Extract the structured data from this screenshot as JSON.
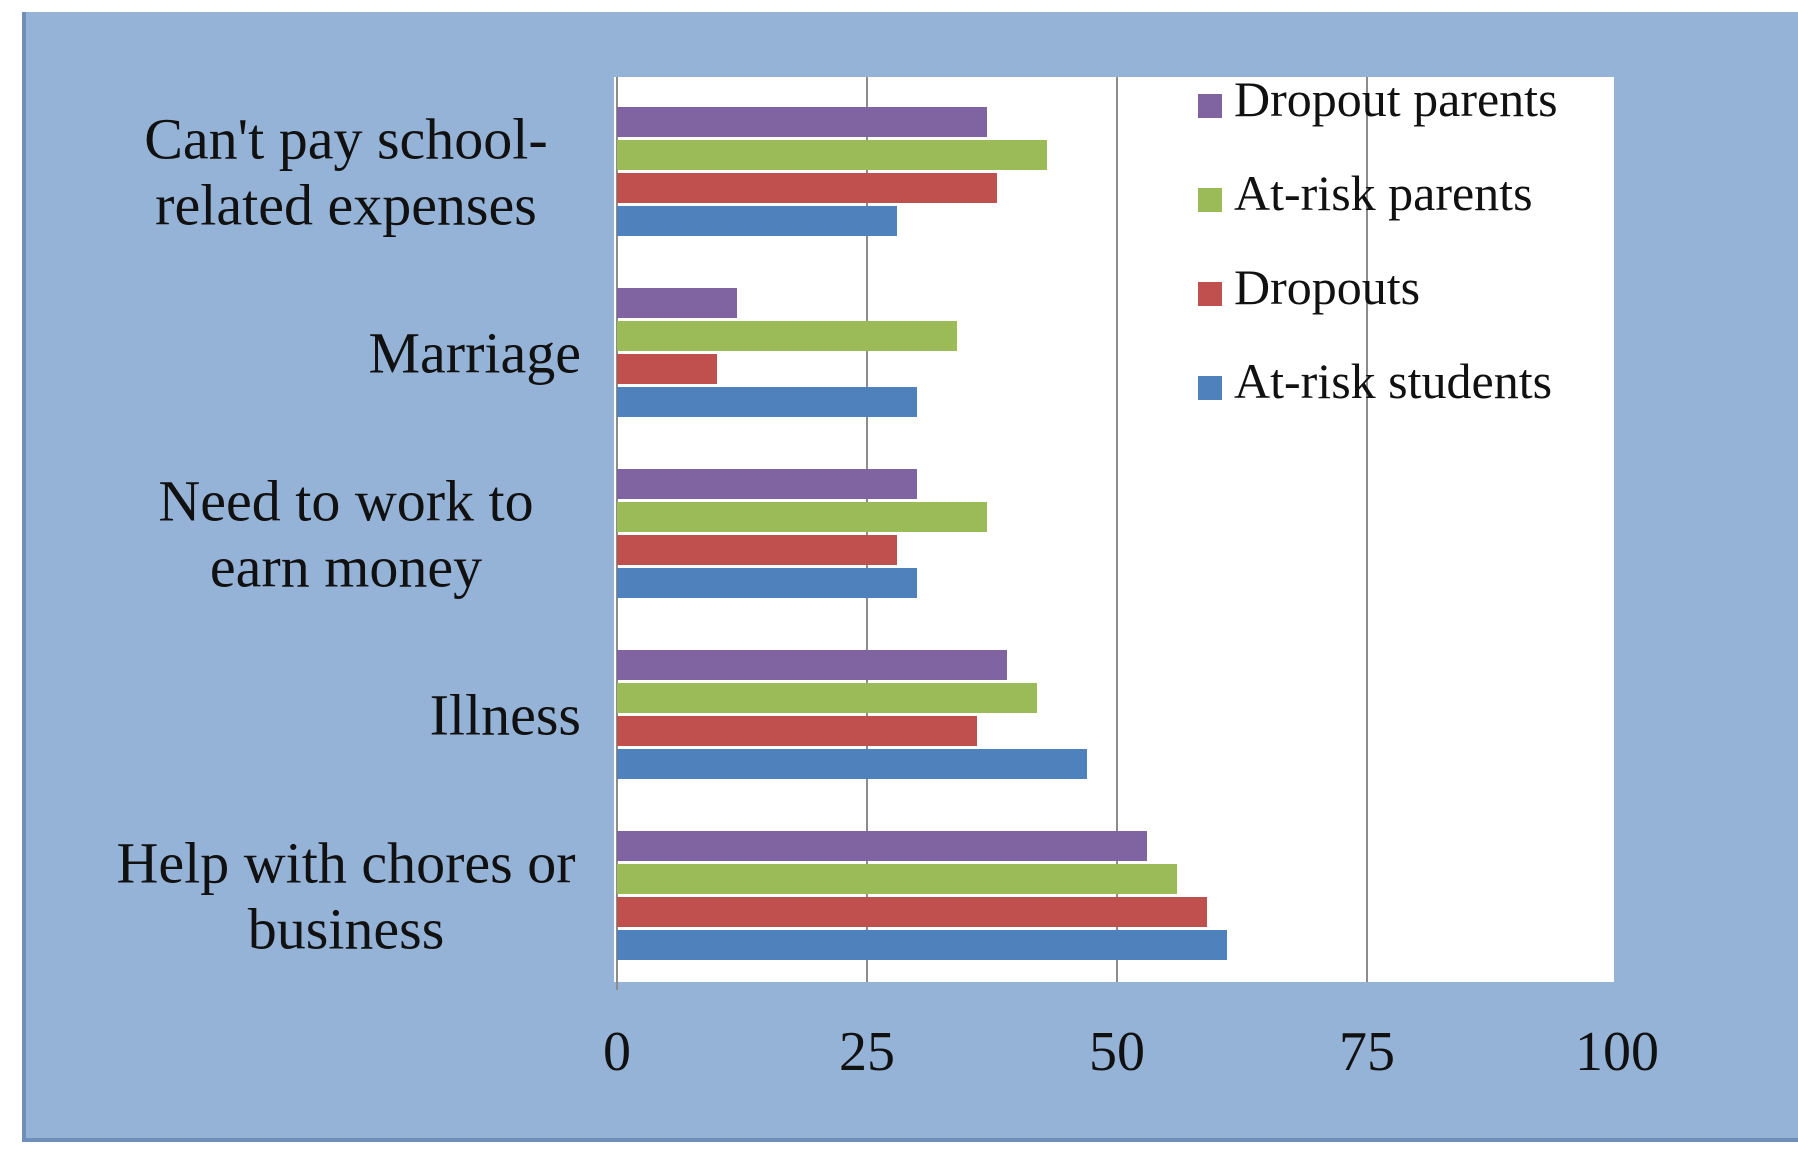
{
  "chart_data": {
    "type": "bar",
    "orientation": "horizontal",
    "title": "",
    "xlabel": "",
    "ylabel": "",
    "xlim": [
      0,
      100
    ],
    "x_ticks": [
      "0",
      "25",
      "50",
      "75",
      "100"
    ],
    "grid": "vertical",
    "legend_position": "top-right",
    "categories": [
      [
        "Can't pay school-",
        "related expenses"
      ],
      [
        "Marriage"
      ],
      [
        "Need to work to",
        "earn money"
      ],
      [
        "Illness"
      ],
      [
        "Help with chores or",
        "business"
      ]
    ],
    "series": [
      {
        "name": "Dropout parents",
        "color": "#8064a2",
        "values": [
          37,
          12,
          30,
          39,
          53
        ]
      },
      {
        "name": "At-risk parents",
        "color": "#9bbb59",
        "values": [
          43,
          34,
          37,
          42,
          56
        ]
      },
      {
        "name": "Dropouts",
        "color": "#c0504d",
        "values": [
          38,
          10,
          28,
          36,
          59
        ]
      },
      {
        "name": "At-risk students",
        "color": "#4f81bd",
        "values": [
          28,
          30,
          30,
          47,
          61
        ]
      }
    ],
    "colors": {
      "background": "#95b3d7",
      "plot_area": "#ffffff",
      "gridline": "#8c8c8c"
    }
  }
}
